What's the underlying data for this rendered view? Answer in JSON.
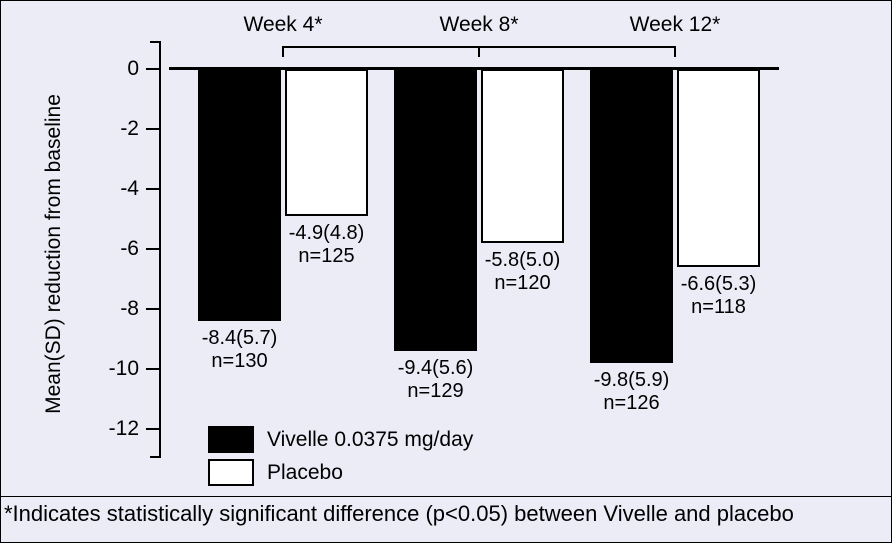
{
  "colors": {
    "background": "#ECECF7",
    "axis": "#000000",
    "text": "#000000",
    "vivelle_bar": "#000000",
    "placebo_bar": "#FFFFFF"
  },
  "chart_data": {
    "type": "bar",
    "orientation": "vertical",
    "title": "",
    "ylabel": "Mean(SD) reduction from baseline",
    "xlabel": "",
    "ylim": [
      -13,
      0
    ],
    "yticks": [
      "0",
      "-2",
      "-4",
      "-6",
      "-8",
      "-10",
      "-12"
    ],
    "ytick_values": [
      0,
      -2,
      -4,
      -6,
      -8,
      -10,
      -12
    ],
    "categories": [
      "Week 4*",
      "Week 8*",
      "Week 12*"
    ],
    "series": [
      {
        "name": "Vivelle 0.0375 mg/day",
        "color": "#000000",
        "values": [
          -8.4,
          -9.4,
          -9.8
        ],
        "sd": [
          5.7,
          5.6,
          5.9
        ],
        "n": [
          130,
          129,
          126
        ],
        "value_labels": [
          "-8.4(5.7)",
          "-9.4(5.6)",
          "-9.8(5.9)"
        ],
        "n_labels": [
          "n=130",
          "n=129",
          "n=126"
        ]
      },
      {
        "name": "Placebo",
        "color": "#FFFFFF",
        "values": [
          -4.9,
          -5.8,
          -6.6
        ],
        "sd": [
          4.8,
          5.0,
          5.3
        ],
        "n": [
          125,
          120,
          118
        ],
        "value_labels": [
          "-4.9(4.8)",
          "-5.8(5.0)",
          "-6.6(5.3)"
        ],
        "n_labels": [
          "n=125",
          "n=120",
          "n=118"
        ]
      }
    ],
    "grid": false,
    "legend_position": "inside-bottom-left",
    "footnote": "*Indicates statistically significant difference (p<0.05) between Vivelle and placebo"
  }
}
